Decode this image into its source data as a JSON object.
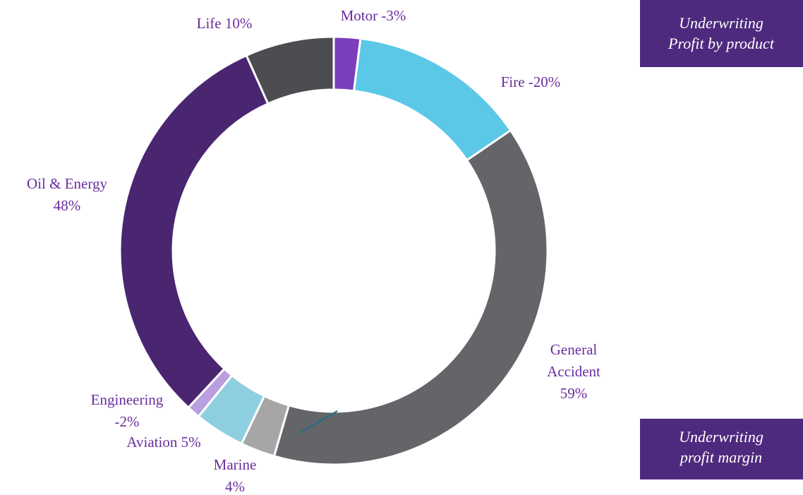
{
  "chart_data": {
    "type": "donut",
    "categories": [
      "Motor",
      "Fire",
      "General Accident",
      "Marine",
      "Aviation",
      "Engineering",
      "Oil & Energy",
      "Life"
    ],
    "labels": [
      [
        "Motor -3%"
      ],
      [
        "Fire  -20%"
      ],
      [
        "General",
        "Accident",
        "59%"
      ],
      [
        "Marine",
        "4%"
      ],
      [
        "Aviation 5%"
      ],
      [
        "Engineering",
        "-2%"
      ],
      [
        "Oil & Energy",
        "48%"
      ],
      [
        "Life 10%"
      ]
    ],
    "values": [
      2,
      13.5,
      39,
      2.6,
      3.8,
      1,
      31.4,
      6.7
    ],
    "colors": [
      "#7b3fbe",
      "#5bc8e8",
      "#636569",
      "#a6a6a6",
      "#8ecfdf",
      "#b99ee0",
      "#4a2570",
      "#4c4d50"
    ]
  },
  "callouts": [
    [
      "Underwriting",
      "Profit by product"
    ],
    [
      "Underwriting",
      "profit margin"
    ]
  ]
}
